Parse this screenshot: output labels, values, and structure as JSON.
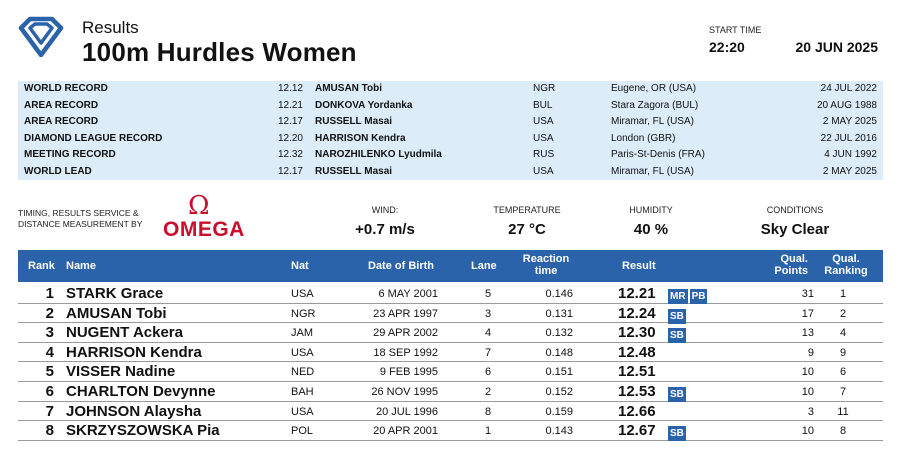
{
  "header": {
    "subtitle": "Results",
    "title": "100m Hurdles Women",
    "start_label": "START TIME",
    "start_time": "22:20",
    "date": "20 JUN 2025"
  },
  "records": [
    {
      "label": "WORLD RECORD",
      "mark": "12.12",
      "name": "AMUSAN Tobi",
      "nat": "NGR",
      "venue": "Eugene, OR (USA)",
      "date": "24 JUL 2022"
    },
    {
      "label": "AREA RECORD",
      "mark": "12.21",
      "name": "DONKOVA Yordanka",
      "nat": "BUL",
      "venue": "Stara Zagora (BUL)",
      "date": "20 AUG 1988"
    },
    {
      "label": "AREA RECORD",
      "mark": "12.17",
      "name": "RUSSELL Masai",
      "nat": "USA",
      "venue": "Miramar, FL (USA)",
      "date": "2 MAY 2025"
    },
    {
      "label": "DIAMOND LEAGUE RECORD",
      "mark": "12.20",
      "name": "HARRISON Kendra",
      "nat": "USA",
      "venue": "London (GBR)",
      "date": "22 JUL 2016"
    },
    {
      "label": "MEETING RECORD",
      "mark": "12.32",
      "name": "NAROZHILENKO Lyudmila",
      "nat": "RUS",
      "venue": "Paris-St-Denis (FRA)",
      "date": "4 JUN 1992"
    },
    {
      "label": "WORLD LEAD",
      "mark": "12.17",
      "name": "RUSSELL Masai",
      "nat": "USA",
      "venue": "Miramar, FL (USA)",
      "date": "2 MAY 2025"
    }
  ],
  "timing": {
    "line1": "TIMING, RESULTS SERVICE &",
    "line2": "DISTANCE MEASUREMENT BY",
    "omega_symbol": "Ω",
    "omega_word": "OMEGA",
    "brand_color": "#c8102e"
  },
  "conditions": {
    "wind_label": "WIND:",
    "wind": "+0.7 m/s",
    "temp_label": "TEMPERATURE",
    "temp": "27 °C",
    "humidity_label": "HUMIDITY",
    "humidity": "40 %",
    "cond_label": "CONDITIONS",
    "cond": "Sky Clear"
  },
  "columns": {
    "rank": "Rank",
    "name": "Name",
    "nat": "Nat",
    "dob": "Date of Birth",
    "lane": "Lane",
    "reaction_1": "Reaction",
    "reaction_2": "time",
    "result": "Result",
    "points_1": "Qual.",
    "points_2": "Points",
    "ranking_1": "Qual.",
    "ranking_2": "Ranking"
  },
  "accent_color": "#2b63ab",
  "results": [
    {
      "rank": "1",
      "name": "STARK Grace",
      "nat": "USA",
      "dob": "6 MAY 2001",
      "lane": "5",
      "reaction": "0.146",
      "result": "12.21",
      "badges": [
        "MR",
        "PB"
      ],
      "points": "31",
      "ranking": "1"
    },
    {
      "rank": "2",
      "name": "AMUSAN Tobi",
      "nat": "NGR",
      "dob": "23 APR 1997",
      "lane": "3",
      "reaction": "0.131",
      "result": "12.24",
      "badges": [
        "SB"
      ],
      "points": "17",
      "ranking": "2"
    },
    {
      "rank": "3",
      "name": "NUGENT Ackera",
      "nat": "JAM",
      "dob": "29 APR 2002",
      "lane": "4",
      "reaction": "0.132",
      "result": "12.30",
      "badges": [
        "SB"
      ],
      "points": "13",
      "ranking": "4"
    },
    {
      "rank": "4",
      "name": "HARRISON Kendra",
      "nat": "USA",
      "dob": "18 SEP 1992",
      "lane": "7",
      "reaction": "0.148",
      "result": "12.48",
      "badges": [],
      "points": "9",
      "ranking": "9"
    },
    {
      "rank": "5",
      "name": "VISSER Nadine",
      "nat": "NED",
      "dob": "9 FEB 1995",
      "lane": "6",
      "reaction": "0.151",
      "result": "12.51",
      "badges": [],
      "points": "10",
      "ranking": "6"
    },
    {
      "rank": "6",
      "name": "CHARLTON Devynne",
      "nat": "BAH",
      "dob": "26 NOV 1995",
      "lane": "2",
      "reaction": "0.152",
      "result": "12.53",
      "badges": [
        "SB"
      ],
      "points": "10",
      "ranking": "7"
    },
    {
      "rank": "7",
      "name": "JOHNSON Alaysha",
      "nat": "USA",
      "dob": "20 JUL 1996",
      "lane": "8",
      "reaction": "0.159",
      "result": "12.66",
      "badges": [],
      "points": "3",
      "ranking": "11"
    },
    {
      "rank": "8",
      "name": "SKRZYSZOWSKA Pia",
      "nat": "POL",
      "dob": "20 APR 2001",
      "lane": "1",
      "reaction": "0.143",
      "result": "12.67",
      "badges": [
        "SB"
      ],
      "points": "10",
      "ranking": "8"
    }
  ]
}
